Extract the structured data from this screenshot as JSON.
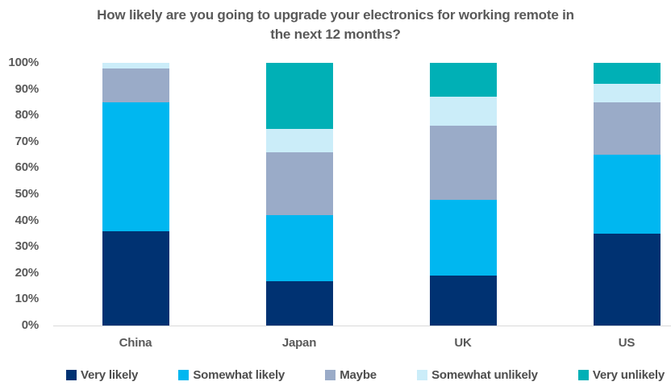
{
  "title": {
    "line1": "How likely are you going to upgrade your electronics for working remote in",
    "line2": "the next 12 months?"
  },
  "chart_data": {
    "type": "bar",
    "stacked": true,
    "unit": "percent",
    "title": "How likely are you going to upgrade your electronics for working remote in the next 12 months?",
    "categories": [
      "China",
      "Japan",
      "UK",
      "US"
    ],
    "series": [
      {
        "name": "Very likely",
        "color": "#003272",
        "values": [
          36,
          17,
          19,
          35
        ]
      },
      {
        "name": "Somewhat likely",
        "color": "#00b7f0",
        "values": [
          49,
          25,
          29,
          30
        ]
      },
      {
        "name": "Maybe",
        "color": "#9aabc8",
        "values": [
          13,
          24,
          28,
          20
        ]
      },
      {
        "name": "Somewhat unlikely",
        "color": "#cbedf9",
        "values": [
          2,
          9,
          11,
          7
        ]
      },
      {
        "name": "Very unlikely",
        "color": "#00b0b6",
        "values": [
          0,
          25,
          13,
          8
        ]
      }
    ],
    "y_axis": {
      "min": 0,
      "max": 100,
      "ticks": [
        "0%",
        "10%",
        "20%",
        "30%",
        "40%",
        "50%",
        "60%",
        "70%",
        "80%",
        "90%",
        "100%"
      ]
    },
    "xlabel": "",
    "ylabel": "",
    "grid": false,
    "legend_position": "bottom"
  },
  "colors": {
    "title_text": "#595959",
    "axis_label_text": "#595959",
    "legend_text": "#4d4d4d",
    "axis_line": "#d9d9d9"
  }
}
